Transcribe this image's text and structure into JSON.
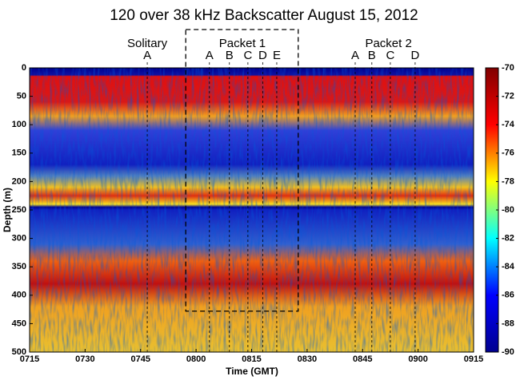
{
  "chart_data": {
    "type": "heatmap",
    "title": "120 over 38 kHz Backscatter August 15, 2012",
    "x_label": "Time (GMT)",
    "y_label": "Depth (m)",
    "xlim": [
      435,
      555
    ],
    "xticks": [
      {
        "value": 435,
        "label": "0715"
      },
      {
        "value": 450,
        "label": "0730"
      },
      {
        "value": 465,
        "label": "0745"
      },
      {
        "value": 480,
        "label": "0800"
      },
      {
        "value": 495,
        "label": "0815"
      },
      {
        "value": 510,
        "label": "0830"
      },
      {
        "value": 525,
        "label": "0845"
      },
      {
        "value": 540,
        "label": "0900"
      },
      {
        "value": 555,
        "label": "0915"
      }
    ],
    "ylim": [
      0,
      500
    ],
    "yticks": [
      0,
      50,
      100,
      150,
      200,
      250,
      300,
      350,
      400,
      450,
      500
    ],
    "clim": [
      -90,
      -70
    ],
    "cticks": [
      -90,
      -88,
      -86,
      -84,
      -82,
      -80,
      -78,
      -76,
      -74,
      -72,
      -70
    ],
    "colormap": [
      "#00008f",
      "#0000ff",
      "#00ffff",
      "#ffff00",
      "#ff0000",
      "#800000"
    ],
    "groups": [
      {
        "label": "Solitary",
        "x": 466.8
      },
      {
        "label": "Packet 1",
        "x": 492.5
      },
      {
        "label": "Packet 2",
        "x": 532
      }
    ],
    "annotations": [
      {
        "label": "A",
        "x": 466.8
      },
      {
        "label": "A",
        "x": 483.6
      },
      {
        "label": "B",
        "x": 489
      },
      {
        "label": "C",
        "x": 494
      },
      {
        "label": "D",
        "x": 498
      },
      {
        "label": "E",
        "x": 501.8
      },
      {
        "label": "A",
        "x": 523
      },
      {
        "label": "B",
        "x": 527.5
      },
      {
        "label": "C",
        "x": 532.5
      },
      {
        "label": "D",
        "x": 539.2
      }
    ],
    "box": {
      "x": [
        477.2,
        507.6
      ],
      "depth_bottom": 428
    }
  }
}
